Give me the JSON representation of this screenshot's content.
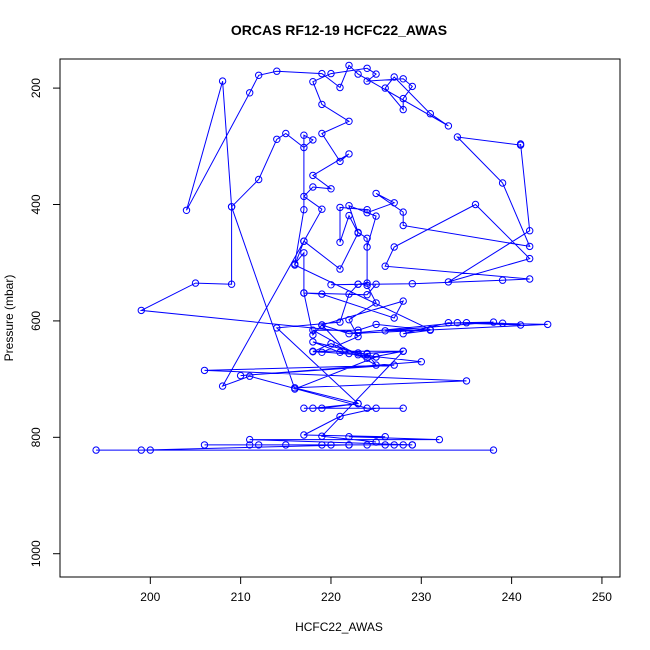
{
  "chart_data": {
    "type": "scatter",
    "title": "ORCAS RF12-19 HCFC22_AWAS",
    "xlabel": "HCFC22_AWAS",
    "ylabel": "Pressure (mbar)",
    "xlim": [
      190,
      252
    ],
    "ylim": [
      1040,
      150
    ],
    "y_inverted": true,
    "x_ticks": [
      200,
      210,
      220,
      230,
      240,
      250
    ],
    "y_ticks": [
      200,
      400,
      600,
      800,
      1000
    ],
    "grid": false,
    "series": [
      {
        "mode": "lines+markers",
        "color": "#0000ff",
        "points": [
          [
            194,
            822
          ],
          [
            238,
            822
          ],
          [
            200,
            822
          ],
          [
            199,
            822
          ],
          [
            222,
            813
          ],
          [
            227,
            813
          ],
          [
            206,
            813
          ],
          [
            228,
            813
          ],
          [
            219,
            813
          ],
          [
            229,
            813
          ],
          [
            211,
            813
          ],
          [
            224,
            813
          ],
          [
            212,
            813
          ],
          [
            220,
            813
          ],
          [
            226,
            813
          ],
          [
            215,
            813
          ],
          [
            222,
            813
          ],
          [
            229,
            813
          ],
          [
            211,
            804
          ],
          [
            232,
            804
          ],
          [
            222,
            799
          ],
          [
            226,
            799
          ],
          [
            217,
            796
          ],
          [
            221,
            764
          ],
          [
            225,
            750
          ],
          [
            217,
            750
          ],
          [
            228,
            750
          ],
          [
            219,
            750
          ],
          [
            223,
            742
          ],
          [
            216,
            715
          ],
          [
            235,
            703
          ],
          [
            206,
            685
          ],
          [
            227,
            676
          ],
          [
            210,
            694
          ],
          [
            230,
            670
          ],
          [
            223,
            658
          ],
          [
            218,
            652
          ],
          [
            228,
            652
          ],
          [
            224,
            656
          ],
          [
            225,
            676
          ],
          [
            218,
            616
          ],
          [
            223,
            616
          ],
          [
            225,
            606
          ],
          [
            231,
            616
          ],
          [
            228,
            622
          ],
          [
            233,
            603
          ],
          [
            241,
            607
          ],
          [
            239,
            604
          ],
          [
            235,
            603
          ],
          [
            244,
            606
          ],
          [
            222,
            622
          ],
          [
            219,
            607
          ],
          [
            228,
            566
          ],
          [
            227,
            595
          ],
          [
            219,
            554
          ],
          [
            217,
            552
          ],
          [
            224,
            555
          ],
          [
            225,
            537
          ],
          [
            223,
            537
          ],
          [
            220,
            538
          ],
          [
            229,
            536
          ],
          [
            239,
            530
          ],
          [
            242,
            528
          ],
          [
            226,
            506
          ],
          [
            227,
            473
          ],
          [
            236,
            400
          ],
          [
            242,
            493
          ],
          [
            233,
            533
          ],
          [
            242,
            445
          ],
          [
            241,
            296
          ],
          [
            241,
            298
          ],
          [
            234,
            284
          ],
          [
            239,
            363
          ],
          [
            242,
            472
          ],
          [
            228,
            436
          ],
          [
            228,
            413
          ],
          [
            225,
            381
          ],
          [
            227,
            397
          ],
          [
            224,
            414
          ],
          [
            224,
            409
          ],
          [
            221,
            405
          ],
          [
            221,
            465
          ],
          [
            222,
            419
          ],
          [
            223,
            449
          ],
          [
            221,
            511
          ],
          [
            217,
            463
          ],
          [
            219,
            408
          ],
          [
            217,
            386
          ],
          [
            218,
            370
          ],
          [
            220,
            373
          ],
          [
            218,
            350
          ],
          [
            222,
            313
          ],
          [
            221,
            326
          ],
          [
            219,
            278
          ],
          [
            222,
            257
          ],
          [
            219,
            228
          ],
          [
            218,
            189
          ],
          [
            220,
            175
          ],
          [
            224,
            166
          ],
          [
            225,
            176
          ],
          [
            224,
            188
          ],
          [
            228,
            184
          ],
          [
            229,
            197
          ],
          [
            228,
            218
          ],
          [
            228,
            237
          ],
          [
            226,
            200
          ],
          [
            227,
            181
          ],
          [
            231,
            244
          ],
          [
            233,
            265
          ],
          [
            223,
            176
          ],
          [
            222,
            161
          ],
          [
            221,
            199
          ],
          [
            219,
            175
          ],
          [
            214,
            171
          ],
          [
            212,
            178
          ],
          [
            211,
            208
          ],
          [
            204,
            410
          ],
          [
            208,
            188
          ],
          [
            209,
            404
          ],
          [
            212,
            357
          ],
          [
            214,
            288
          ],
          [
            215,
            278
          ],
          [
            217,
            302
          ],
          [
            218,
            289
          ],
          [
            217,
            281
          ],
          [
            217,
            409
          ],
          [
            216,
            502
          ],
          [
            217,
            483
          ],
          [
            217,
            552
          ],
          [
            218,
            624
          ],
          [
            219,
            607
          ],
          [
            222,
            656
          ],
          [
            223,
            655
          ],
          [
            224,
            657
          ],
          [
            221,
            654
          ],
          [
            218,
            636
          ],
          [
            225,
            662
          ],
          [
            216,
            717
          ],
          [
            209,
            404
          ],
          [
            209,
            537
          ],
          [
            205,
            535
          ],
          [
            199,
            582
          ],
          [
            223,
            620
          ],
          [
            234,
            603
          ],
          [
            238,
            602
          ],
          [
            226,
            617
          ],
          [
            231,
            615
          ],
          [
            216,
            504
          ],
          [
            217,
            463
          ],
          [
            208,
            712
          ],
          [
            211,
            695
          ],
          [
            224,
            750
          ],
          [
            218,
            750
          ],
          [
            223,
            742
          ],
          [
            214,
            612
          ],
          [
            221,
            602
          ],
          [
            222,
            554
          ],
          [
            223,
            537
          ],
          [
            224,
            535
          ],
          [
            224,
            473
          ],
          [
            225,
            420
          ],
          [
            222,
            402
          ],
          [
            223,
            448
          ],
          [
            224,
            458
          ],
          [
            224,
            539
          ],
          [
            225,
            569
          ],
          [
            222,
            598
          ],
          [
            223,
            627
          ],
          [
            219,
            654
          ],
          [
            218,
            653
          ],
          [
            220,
            639
          ],
          [
            224,
            664
          ],
          [
            228,
            652
          ],
          [
            219,
            798
          ],
          [
            225,
            808
          ]
        ]
      }
    ]
  }
}
